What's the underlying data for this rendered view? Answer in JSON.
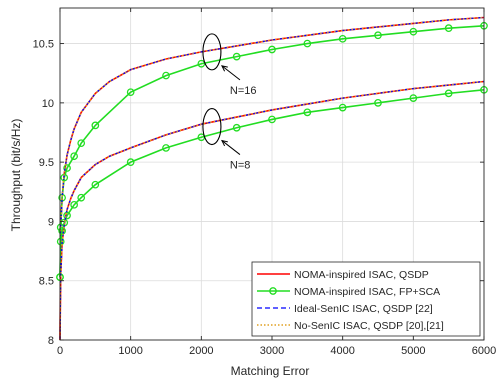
{
  "chart_data": {
    "type": "line",
    "title": "",
    "xlabel": "Matching Error",
    "ylabel": "Throughput (bit/s/Hz)",
    "xlim": [
      0,
      6000
    ],
    "ylim": [
      8,
      10.8
    ],
    "xticks": [
      0,
      1000,
      2000,
      3000,
      4000,
      5000,
      6000
    ],
    "yticks": [
      8,
      8.5,
      9,
      9.5,
      10,
      10.5
    ],
    "grid": true,
    "legend_position": "bottom-right",
    "colors": {
      "qsdp": "#ff0000",
      "fpsca": "#22dd22",
      "ideal": "#0000ff",
      "nosenic": "#e0a020"
    },
    "series": [
      {
        "name": "NOMA-inspired ISAC, QSDP",
        "group": "N=16",
        "style": "solid-red",
        "x": [
          0,
          10,
          30,
          60,
          100,
          150,
          200,
          300,
          500,
          700,
          1000,
          1500,
          2000,
          2500,
          3000,
          3500,
          4000,
          4500,
          5000,
          5500,
          6000
        ],
        "y": [
          8.0,
          8.95,
          9.2,
          9.4,
          9.56,
          9.68,
          9.78,
          9.92,
          10.08,
          10.18,
          10.28,
          10.37,
          10.43,
          10.48,
          10.53,
          10.57,
          10.61,
          10.64,
          10.67,
          10.7,
          10.72
        ]
      },
      {
        "name": "NOMA-inspired ISAC, FP+SCA",
        "group": "N=16",
        "style": "solid-green-circles",
        "x": [
          0,
          10,
          30,
          60,
          100,
          200,
          300,
          500,
          1000,
          1500,
          2000,
          2500,
          3000,
          3500,
          4000,
          4500,
          5000,
          5500,
          6000
        ],
        "y": [
          8.53,
          8.95,
          9.2,
          9.37,
          9.45,
          9.55,
          9.66,
          9.81,
          10.09,
          10.23,
          10.33,
          10.39,
          10.45,
          10.5,
          10.54,
          10.57,
          10.6,
          10.63,
          10.65
        ]
      },
      {
        "name": "Ideal-SenIC ISAC, QSDP [22]",
        "group": "N=16",
        "style": "dashed-blue",
        "x": [
          0,
          10,
          30,
          60,
          100,
          150,
          200,
          300,
          500,
          700,
          1000,
          1500,
          2000,
          2500,
          3000,
          3500,
          4000,
          4500,
          5000,
          5500,
          6000
        ],
        "y": [
          8.0,
          8.95,
          9.2,
          9.4,
          9.56,
          9.68,
          9.78,
          9.92,
          10.08,
          10.18,
          10.28,
          10.37,
          10.43,
          10.48,
          10.53,
          10.57,
          10.61,
          10.64,
          10.67,
          10.7,
          10.72
        ]
      },
      {
        "name": "No-SenIC ISAC, QSDP [20],[21]",
        "group": "N=16",
        "style": "dotted-orange",
        "x": [
          0,
          10,
          30,
          60,
          100,
          150,
          200,
          300,
          500,
          700,
          1000,
          1500,
          2000,
          2500,
          3000,
          3500,
          4000,
          4500,
          5000,
          5500,
          6000
        ],
        "y": [
          8.0,
          8.95,
          9.2,
          9.4,
          9.56,
          9.68,
          9.78,
          9.92,
          10.08,
          10.18,
          10.28,
          10.37,
          10.43,
          10.48,
          10.53,
          10.57,
          10.61,
          10.64,
          10.67,
          10.7,
          10.72
        ]
      },
      {
        "name": "NOMA-inspired ISAC, QSDP",
        "group": "N=8",
        "style": "solid-red",
        "x": [
          0,
          10,
          30,
          60,
          100,
          150,
          200,
          300,
          500,
          700,
          1000,
          1500,
          2000,
          2500,
          3000,
          3500,
          4000,
          4500,
          5000,
          5500,
          6000
        ],
        "y": [
          8.0,
          8.55,
          8.82,
          8.97,
          9.1,
          9.19,
          9.26,
          9.37,
          9.48,
          9.55,
          9.62,
          9.73,
          9.82,
          9.88,
          9.94,
          9.99,
          10.04,
          10.08,
          10.12,
          10.15,
          10.18
        ]
      },
      {
        "name": "NOMA-inspired ISAC, FP+SCA",
        "group": "N=8",
        "style": "solid-green-circles",
        "x": [
          0,
          10,
          30,
          60,
          100,
          200,
          300,
          500,
          1000,
          1500,
          2000,
          2500,
          3000,
          3500,
          4000,
          4500,
          5000,
          5500,
          6000
        ],
        "y": [
          8.53,
          8.83,
          8.92,
          8.99,
          9.05,
          9.14,
          9.2,
          9.31,
          9.5,
          9.62,
          9.71,
          9.79,
          9.86,
          9.92,
          9.96,
          10.0,
          10.04,
          10.08,
          10.11
        ]
      },
      {
        "name": "Ideal-SenIC ISAC, QSDP [22]",
        "group": "N=8",
        "style": "dashed-blue",
        "x": [
          0,
          10,
          30,
          60,
          100,
          150,
          200,
          300,
          500,
          700,
          1000,
          1500,
          2000,
          2500,
          3000,
          3500,
          4000,
          4500,
          5000,
          5500,
          6000
        ],
        "y": [
          8.0,
          8.55,
          8.82,
          8.97,
          9.1,
          9.19,
          9.26,
          9.37,
          9.48,
          9.55,
          9.62,
          9.73,
          9.82,
          9.88,
          9.94,
          9.99,
          10.04,
          10.08,
          10.12,
          10.15,
          10.18
        ]
      },
      {
        "name": "No-SenIC ISAC, QSDP [20],[21]",
        "group": "N=8",
        "style": "dotted-orange",
        "x": [
          0,
          10,
          30,
          60,
          100,
          150,
          200,
          300,
          500,
          700,
          1000,
          1500,
          2000,
          2500,
          3000,
          3500,
          4000,
          4500,
          5000,
          5500,
          6000
        ],
        "y": [
          8.0,
          8.55,
          8.82,
          8.97,
          9.1,
          9.19,
          9.26,
          9.37,
          9.48,
          9.55,
          9.62,
          9.73,
          9.82,
          9.88,
          9.94,
          9.99,
          10.04,
          10.08,
          10.12,
          10.15,
          10.18
        ]
      }
    ],
    "annotations": [
      {
        "text": "N=16",
        "x": 2150,
        "y": 10.43
      },
      {
        "text": "N=8",
        "x": 2150,
        "y": 9.8
      }
    ]
  }
}
